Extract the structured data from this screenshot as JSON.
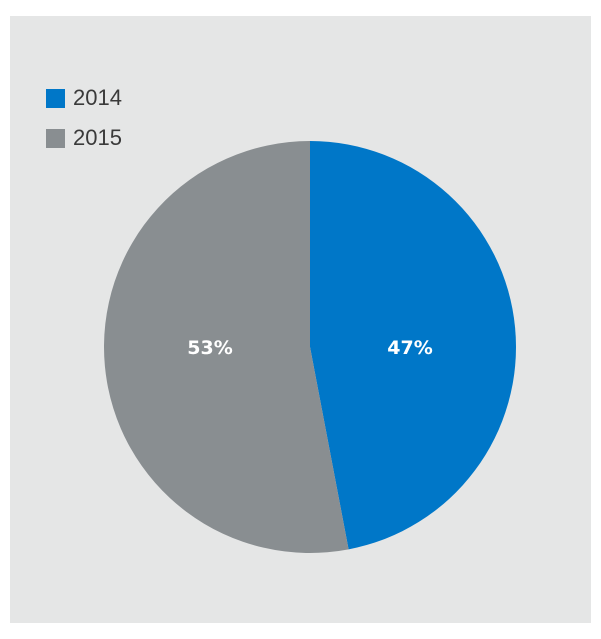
{
  "chart_data": {
    "type": "pie",
    "title": "",
    "series": [
      {
        "name": "2014",
        "value": 47,
        "label": "47%",
        "color": "#0077c8"
      },
      {
        "name": "2015",
        "value": 53,
        "label": "53%",
        "color": "#898e91"
      }
    ],
    "legend_position": "top-left",
    "background_color": "#e5e6e6"
  }
}
